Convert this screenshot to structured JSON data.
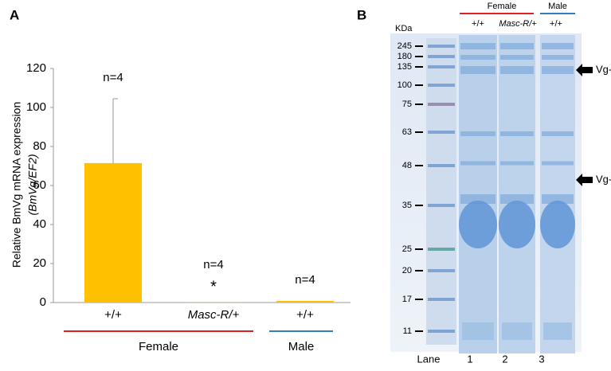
{
  "panel_a_label": "A",
  "panel_b_label": "B",
  "chart_data": {
    "type": "bar",
    "ylabel": [
      "Relative BmVg mRNA expression",
      "(BmVg/EF2)"
    ],
    "categories": [
      "+/+",
      "Masc-R/+",
      "+/+"
    ],
    "values": [
      71.5,
      0.3,
      0.8
    ],
    "errors": [
      33,
      null,
      null
    ],
    "colors": [
      "#ffc000",
      "#ffc000",
      "#ffc000"
    ],
    "ylim": [
      0,
      120
    ],
    "yticks": [
      0,
      20,
      40,
      60,
      80,
      100,
      120
    ],
    "annotations": [
      "n=4",
      "n=4",
      "n=4"
    ],
    "significance": [
      null,
      "*",
      null
    ],
    "groups": [
      {
        "name": "Female",
        "color": "#e02020"
      },
      {
        "name": "Male",
        "color": "#2f7fc1"
      }
    ]
  },
  "gel": {
    "unit": "KDa",
    "markers": [
      245,
      180,
      135,
      100,
      75,
      63,
      48,
      35,
      25,
      20,
      17,
      11
    ],
    "groups": [
      {
        "name": "Female",
        "color": "#e02020"
      },
      {
        "name": "Male",
        "color": "#2f7fc1"
      }
    ],
    "genotypes": [
      "+/+",
      "Masc-R/+",
      "+/+"
    ],
    "lane_title": "Lane",
    "lanes": [
      "1",
      "2",
      "3"
    ],
    "arrows": [
      "Vg-h",
      "Vg-l"
    ]
  }
}
